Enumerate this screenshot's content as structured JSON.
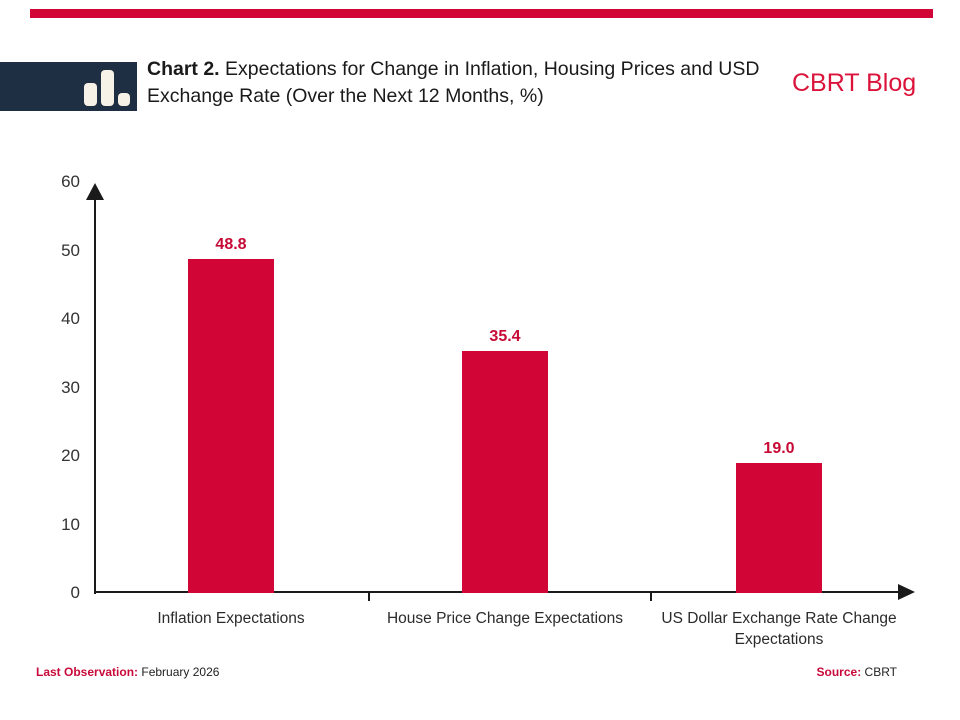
{
  "header": {
    "title_prefix": "Chart 2.",
    "title_line1": "Expectations for Change in Inflation, Housing Prices",
    "title_line2": "and USD Exchange Rate (Over the Next 12 Months, %)",
    "brand": "CBRT Blog"
  },
  "footer": {
    "last_obs_label": "Last Observation:",
    "last_obs_value": "February 2026",
    "source_label": "Source:",
    "source_value": "CBRT"
  },
  "colors": {
    "accent_red": "#d20537",
    "value_label_red": "#c60a35",
    "footer_label_red": "#c9093a",
    "brand_red": "#db143b",
    "logo_navy": "#1f2f43",
    "logo_icon_cream": "#f7f2e7"
  },
  "icons": {
    "logo": "bar-chart-icon"
  },
  "chart_data": {
    "type": "bar",
    "categories": [
      "Inflation Expectations",
      "House Price Change Expectations",
      "US Dollar Exchange Rate Change Expectations"
    ],
    "values": [
      48.8,
      35.4,
      19.0
    ],
    "value_labels": [
      "48.8",
      "35.4",
      "19.0"
    ],
    "title": "Chart 2. Expectations for Change in Inflation, Housing Prices and USD Exchange Rate (Over the Next 12 Months, %)",
    "xlabel": "",
    "ylabel": "",
    "ylim": [
      0,
      60
    ],
    "yticks": [
      0,
      10,
      20,
      30,
      40,
      50,
      60
    ],
    "grid": false,
    "legend": false,
    "bar_color": "#d20537"
  }
}
